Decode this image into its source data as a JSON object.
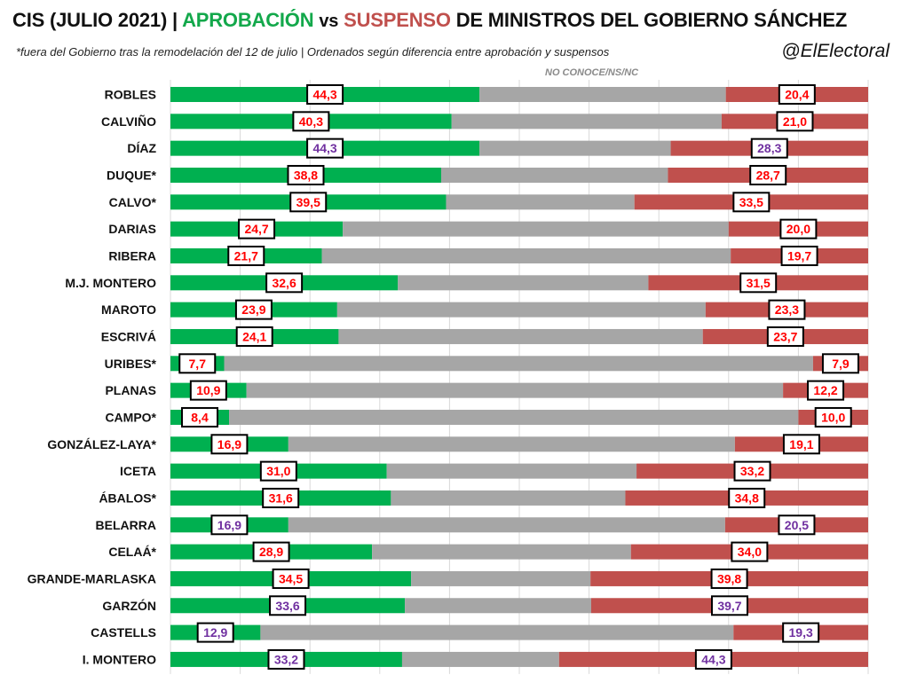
{
  "header": {
    "title_prefix": "CIS (JULIO 2021) |",
    "title_approval": "APROBACIÓN",
    "title_vs": "vs",
    "title_fail": "SUSPENSO",
    "title_suffix": "DE MINISTROS DEL GOBIERNO SÁNCHEZ",
    "subtitle": "*fuera del Gobierno tras la remodelación del 12 de julio | Ordenados según diferencia entre aprobación y suspensos",
    "handle": "@ElElectoral",
    "middle_label": "NO CONOCE/NS/NC"
  },
  "colors": {
    "approval": "#00b050",
    "unknown": "#a6a6a6",
    "fail": "#c0504d",
    "label_red": "#ff0000",
    "label_purple": "#7030a0"
  },
  "chart_data": {
    "type": "bar",
    "stacked": true,
    "orientation": "horizontal",
    "xlim": [
      0,
      100
    ],
    "grid": true,
    "categories": [
      "ROBLES",
      "CALVIÑO",
      "DÍAZ",
      "DUQUE*",
      "CALVO*",
      "DARIAS",
      "RIBERA",
      "M.J. MONTERO",
      "MAROTO",
      "ESCRIVÁ",
      "URIBES*",
      "PLANAS",
      "CAMPO*",
      "GONZÁLEZ-LAYA*",
      "ICETA",
      "ÁBALOS*",
      "BELARRA",
      "CELAÁ*",
      "GRANDE-MARLASKA",
      "GARZÓN",
      "CASTELLS",
      "I. MONTERO"
    ],
    "series": [
      {
        "name": "APROBACIÓN",
        "values": [
          44.3,
          40.3,
          44.3,
          38.8,
          39.5,
          24.7,
          21.7,
          32.6,
          23.9,
          24.1,
          7.7,
          10.9,
          8.4,
          16.9,
          31.0,
          31.6,
          16.9,
          28.9,
          34.5,
          33.6,
          12.9,
          33.2
        ]
      },
      {
        "name": "NO CONOCE/NS/NC",
        "values": [
          35.3,
          38.7,
          27.4,
          32.5,
          27.0,
          55.3,
          58.6,
          35.9,
          52.8,
          52.2,
          84.4,
          76.9,
          81.6,
          64.0,
          35.8,
          33.6,
          62.6,
          37.1,
          25.7,
          26.7,
          67.8,
          22.5
        ]
      },
      {
        "name": "SUSPENSO",
        "values": [
          20.4,
          21.0,
          28.3,
          28.7,
          33.5,
          20.0,
          19.7,
          31.5,
          23.3,
          23.7,
          7.9,
          12.2,
          10.0,
          19.1,
          33.2,
          34.8,
          20.5,
          34.0,
          39.8,
          39.7,
          19.3,
          44.3
        ]
      }
    ],
    "approval_labels": [
      "44,3",
      "40,3",
      "44,3",
      "38,8",
      "39,5",
      "24,7",
      "21,7",
      "32,6",
      "23,9",
      "24,1",
      "7,7",
      "10,9",
      "8,4",
      "16,9",
      "31,0",
      "31,6",
      "16,9",
      "28,9",
      "34,5",
      "33,6",
      "12,9",
      "33,2"
    ],
    "fail_labels": [
      "20,4",
      "21,0",
      "28,3",
      "28,7",
      "33,5",
      "20,0",
      "19,7",
      "31,5",
      "23,3",
      "23,7",
      "7,9",
      "12,2",
      "10,0",
      "19,1",
      "33,2",
      "34,8",
      "20,5",
      "34,0",
      "39,8",
      "39,7",
      "19,3",
      "44,3"
    ],
    "label_color_keys": [
      "red",
      "red",
      "purple",
      "red",
      "red",
      "red",
      "red",
      "red",
      "red",
      "red",
      "red",
      "red",
      "red",
      "red",
      "red",
      "red",
      "purple",
      "red",
      "red",
      "purple",
      "purple",
      "purple"
    ]
  }
}
